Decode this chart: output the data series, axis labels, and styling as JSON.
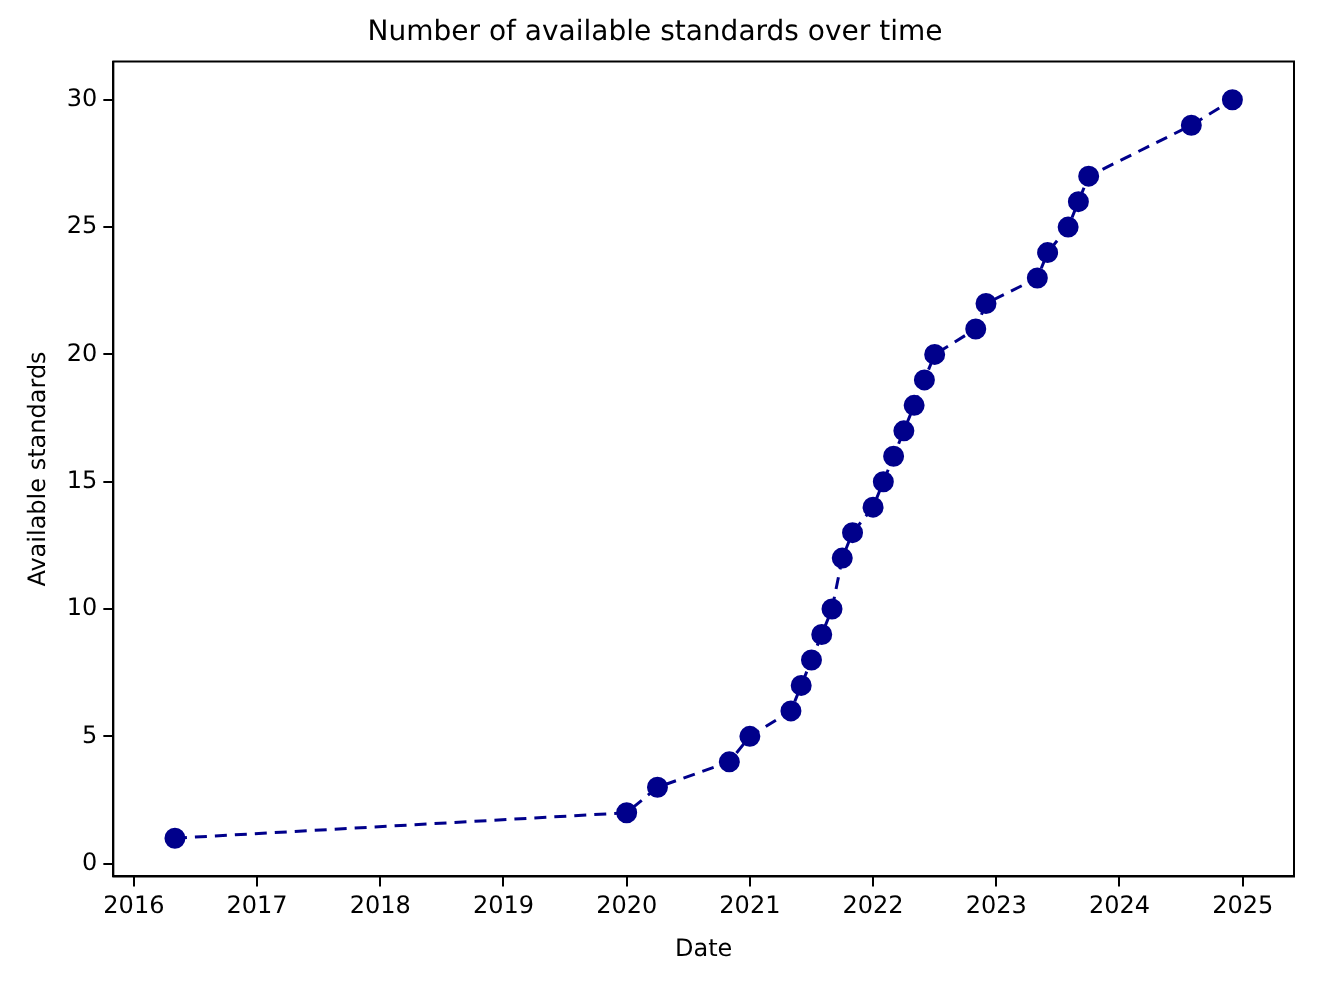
{
  "chart_data": {
    "type": "line",
    "title": "Number of available standards over time",
    "xlabel": "Date",
    "ylabel": "Available standards",
    "x": [
      "2016-05",
      "2020-01",
      "2020-04",
      "2020-11",
      "2021-01",
      "2021-05",
      "2021-06",
      "2021-07",
      "2021-08",
      "2021-09",
      "2021-10",
      "2021-11",
      "2022-01",
      "2022-02",
      "2022-03",
      "2022-04",
      "2022-05",
      "2022-06",
      "2022-07",
      "2022-11",
      "2022-12",
      "2023-05",
      "2023-06",
      "2023-08",
      "2023-09",
      "2023-10",
      "2024-08",
      "2024-12"
    ],
    "series": [
      {
        "color": "#00008b",
        "values": [
          1,
          2,
          3,
          4,
          5,
          6,
          7,
          8,
          9,
          10,
          12,
          13,
          14,
          15,
          16,
          17,
          18,
          19,
          20,
          21,
          22,
          23,
          24,
          25,
          26,
          27,
          29,
          30
        ]
      }
    ],
    "xlim": [
      "2015-11",
      "2025-06"
    ],
    "xticks": [
      "2016",
      "2017",
      "2018",
      "2019",
      "2020",
      "2021",
      "2022",
      "2023",
      "2024",
      "2025"
    ],
    "ylim": [
      -0.5,
      31.5
    ],
    "yticks": [
      0,
      5,
      10,
      15,
      20,
      25,
      30
    ],
    "grid": false,
    "legend": false,
    "marker": "circle",
    "line_style": "dashed"
  }
}
